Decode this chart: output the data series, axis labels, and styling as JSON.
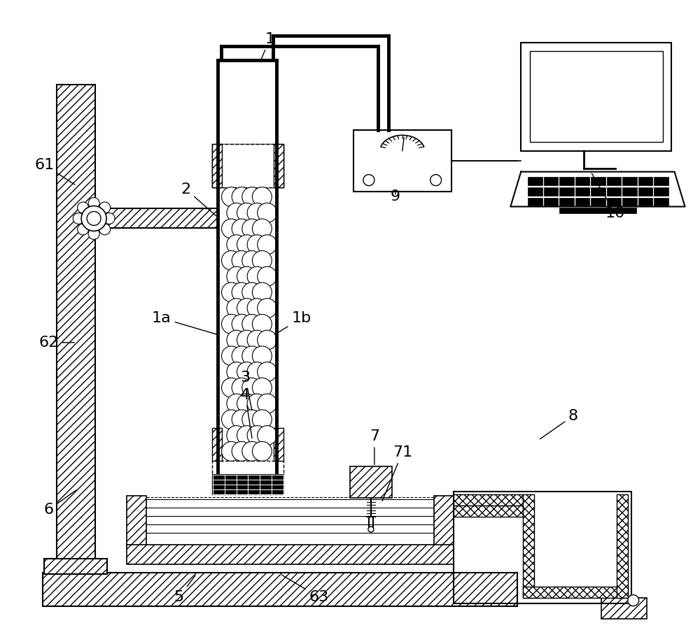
{
  "bg_color": "#ffffff",
  "fig_width": 10.0,
  "fig_height": 9.01,
  "dpi": 100
}
